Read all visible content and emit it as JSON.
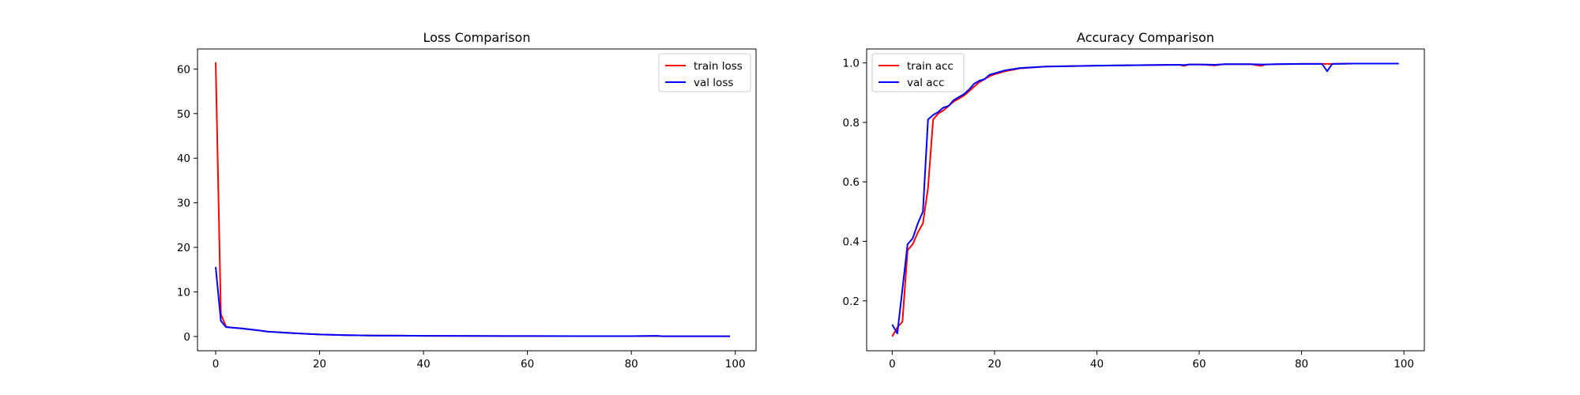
{
  "chart_data": [
    {
      "type": "line",
      "title": "Loss Comparison",
      "xlabel": "",
      "ylabel": "",
      "xlim": [
        -3.5,
        104.0
      ],
      "ylim": [
        -3.2,
        64.5
      ],
      "xticks": [
        0,
        20,
        40,
        60,
        80,
        100
      ],
      "xtick_labels": [
        "0",
        "20",
        "40",
        "60",
        "80",
        "100"
      ],
      "yticks": [
        0,
        10,
        20,
        30,
        40,
        50,
        60
      ],
      "ytick_labels": [
        "0",
        "10",
        "20",
        "30",
        "40",
        "50",
        "60"
      ],
      "grid": false,
      "legend_position": "top-right",
      "series": [
        {
          "name": "train loss",
          "color": "#ff0000",
          "x": [
            0,
            1,
            2,
            3,
            5,
            8,
            10,
            15,
            20,
            25,
            30,
            40,
            50,
            60,
            70,
            80,
            85,
            86,
            90,
            99
          ],
          "y": [
            61.5,
            5.0,
            2.2,
            2.0,
            1.8,
            1.4,
            1.1,
            0.75,
            0.45,
            0.3,
            0.22,
            0.15,
            0.12,
            0.1,
            0.08,
            0.07,
            0.12,
            0.06,
            0.05,
            0.05
          ]
        },
        {
          "name": "val loss",
          "color": "#0000ff",
          "x": [
            0,
            1,
            2,
            3,
            5,
            8,
            10,
            15,
            20,
            25,
            30,
            40,
            50,
            60,
            70,
            80,
            85,
            86,
            90,
            99
          ],
          "y": [
            15.6,
            3.5,
            2.1,
            2.0,
            1.8,
            1.4,
            1.1,
            0.75,
            0.45,
            0.3,
            0.22,
            0.15,
            0.12,
            0.1,
            0.08,
            0.07,
            0.15,
            0.06,
            0.05,
            0.05
          ]
        }
      ]
    },
    {
      "type": "line",
      "title": "Accuracy Comparison",
      "xlabel": "",
      "ylabel": "",
      "xlim": [
        -5.0,
        104.0
      ],
      "ylim": [
        0.032,
        1.047
      ],
      "xticks": [
        0,
        20,
        40,
        60,
        80,
        100
      ],
      "xtick_labels": [
        "0",
        "20",
        "40",
        "60",
        "80",
        "100"
      ],
      "yticks": [
        0.2,
        0.4,
        0.6,
        0.8,
        1.0
      ],
      "ytick_labels": [
        "0.2",
        "0.4",
        "0.6",
        "0.8",
        "1.0"
      ],
      "grid": false,
      "legend_position": "top-left",
      "series": [
        {
          "name": "train acc",
          "color": "#ff0000",
          "x": [
            0,
            1,
            2,
            3,
            4,
            5,
            6,
            7,
            8,
            9,
            10,
            11,
            12,
            13,
            14,
            15,
            16,
            17,
            18,
            19,
            20,
            22,
            25,
            30,
            40,
            50,
            56,
            57,
            58,
            60,
            63,
            65,
            70,
            72,
            73,
            75,
            80,
            84,
            85,
            86,
            90,
            99
          ],
          "y": [
            0.08,
            0.11,
            0.13,
            0.37,
            0.39,
            0.43,
            0.46,
            0.58,
            0.81,
            0.83,
            0.84,
            0.855,
            0.87,
            0.88,
            0.89,
            0.905,
            0.92,
            0.935,
            0.945,
            0.955,
            0.962,
            0.972,
            0.982,
            0.988,
            0.991,
            0.993,
            0.994,
            0.99,
            0.995,
            0.995,
            0.992,
            0.996,
            0.996,
            0.99,
            0.995,
            0.996,
            0.997,
            0.997,
            0.997,
            0.997,
            0.998,
            0.998
          ]
        },
        {
          "name": "val acc",
          "color": "#0000ff",
          "x": [
            0,
            1,
            2,
            3,
            4,
            5,
            6,
            7,
            8,
            9,
            10,
            11,
            12,
            13,
            14,
            15,
            16,
            17,
            18,
            19,
            20,
            22,
            25,
            30,
            40,
            50,
            56,
            57,
            58,
            60,
            63,
            65,
            70,
            72,
            73,
            75,
            80,
            84,
            85,
            86,
            90,
            99
          ],
          "y": [
            0.12,
            0.09,
            0.24,
            0.39,
            0.41,
            0.46,
            0.5,
            0.81,
            0.825,
            0.835,
            0.85,
            0.855,
            0.875,
            0.885,
            0.895,
            0.91,
            0.93,
            0.94,
            0.945,
            0.96,
            0.965,
            0.975,
            0.983,
            0.988,
            0.991,
            0.993,
            0.994,
            0.993,
            0.995,
            0.995,
            0.994,
            0.996,
            0.996,
            0.995,
            0.995,
            0.996,
            0.997,
            0.997,
            0.972,
            0.997,
            0.998,
            0.998
          ]
        }
      ]
    }
  ]
}
